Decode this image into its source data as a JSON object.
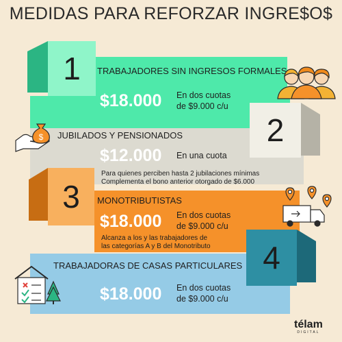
{
  "title": "MEDIDAS PARA REFORZAR INGRE$O$",
  "brand": {
    "name": "télam",
    "sub": "DIGITAL"
  },
  "colors": {
    "background": "#f6ead5",
    "green": "#4ee9aa",
    "gray": "#dcdad0",
    "orange": "#f5912a",
    "blue": "#95cbe6",
    "teal": "#2e8fa3"
  },
  "items": [
    {
      "number": "1",
      "category": "TRABAJADORES SIN INGRESOS FORMALES",
      "amount": "$18.000",
      "desc_line1": "En dos cuotas",
      "desc_line2": "de $9.000 c/u",
      "icon": "workers-group-icon"
    },
    {
      "number": "2",
      "category": "JUBILADOS Y PENSIONADOS",
      "amount": "$12.000",
      "desc_line1": "En una cuota",
      "note_line1": "Para quienes perciben hasta 2 jubilaciones mínimas",
      "note_line2": "Complementa el bono anterior otorgado de $6.000",
      "icon": "money-bag-hand-icon"
    },
    {
      "number": "3",
      "category": "MONOTRIBUTISTAS",
      "amount": "$18.000",
      "desc_line1": "En dos cuotas",
      "desc_line2": "de $9.000 c/u",
      "note_line1": "Alcanza a los y las trabajadores de",
      "note_line2": "las categorías A y B del Monotributo",
      "icon": "delivery-truck-icon"
    },
    {
      "number": "4",
      "category": "TRABAJADORAS DE CASAS PARTICULARES",
      "amount": "$18.000",
      "desc_line1": "En dos cuotas",
      "desc_line2": "de $9.000 c/u",
      "icon": "house-checklist-icon"
    }
  ]
}
